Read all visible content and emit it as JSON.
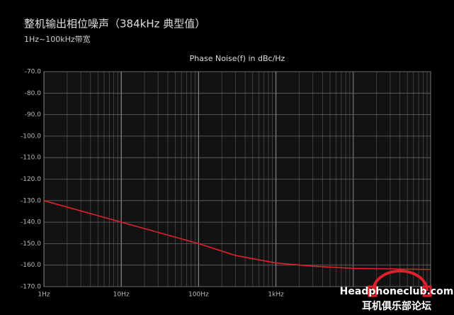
{
  "header": {
    "title": "整机输出相位噪声（384kHz 典型值）",
    "subtitle": "1Hz~100kHz带宽"
  },
  "chart_data": {
    "type": "line",
    "title": "Phase Noise(f) in dBc/Hz",
    "x": [
      1,
      10,
      100,
      300,
      1000,
      3000,
      10000,
      100000
    ],
    "series": [
      {
        "color": "#e0202a",
        "values": [
          -130,
          -140,
          -150,
          -155.5,
          -159,
          -160.5,
          -161.5,
          -162
        ]
      }
    ],
    "xlim": [
      1,
      100000
    ],
    "xscale": "log",
    "minor_grid": true,
    "xticks": [
      {
        "value": 1,
        "label": "1Hz"
      },
      {
        "value": 10,
        "label": "10Hz"
      },
      {
        "value": 100,
        "label": "100Hz"
      },
      {
        "value": 1000,
        "label": "1kHz"
      }
    ],
    "ylim": [
      -170,
      -70
    ],
    "yticks": [
      {
        "value": -70,
        "label": "-70.0"
      },
      {
        "value": -80,
        "label": "-80.0"
      },
      {
        "value": -90,
        "label": "-90.0"
      },
      {
        "value": -100,
        "label": "-100.0"
      },
      {
        "value": -110,
        "label": "-110.0"
      },
      {
        "value": -120,
        "label": "-120.0"
      },
      {
        "value": -130,
        "label": "-130.0"
      },
      {
        "value": -140,
        "label": "-140.0"
      },
      {
        "value": -150,
        "label": "-150.0"
      },
      {
        "value": -160,
        "label": "-160.0"
      },
      {
        "value": -170,
        "label": "-170.0"
      }
    ],
    "grid": true
  },
  "watermark": {
    "site": "Headphoneclub.com",
    "name": "耳机俱乐部论坛"
  }
}
